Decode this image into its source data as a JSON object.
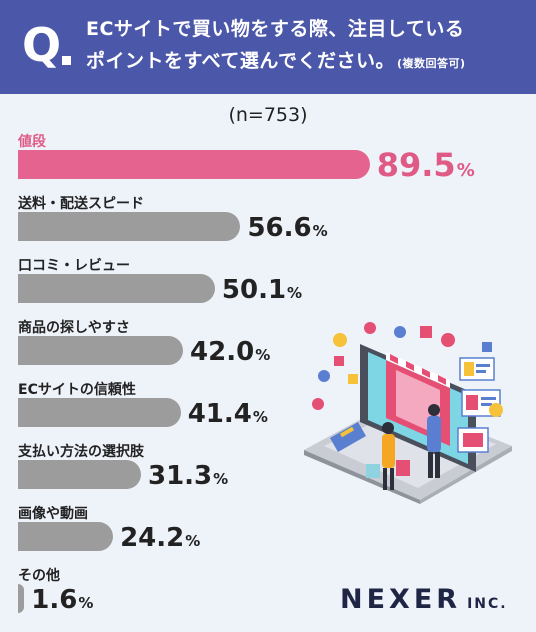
{
  "header": {
    "q_letter": "Q",
    "line1": "ECサイトで買い物をする際、注目している",
    "line2": "ポイントをすべて選んでください。",
    "note": "(複数回答可)"
  },
  "sample_size": "(n=753)",
  "colors": {
    "header_bg": "#4b57a8",
    "highlight": "#e4648f",
    "bar": "#9c9c9c",
    "background": "#eef2f9"
  },
  "chart_data": {
    "type": "bar",
    "orientation": "horizontal",
    "title": "ECサイトで買い物をする際、注目しているポイントをすべて選んでください。(複数回答可)",
    "subtitle": "(n=753)",
    "categories": [
      "値段",
      "送料・配送スピード",
      "口コミ・レビュー",
      "商品の探しやすさ",
      "ECサイトの信頼性",
      "支払い方法の選択肢",
      "画像や動画",
      "その他"
    ],
    "values": [
      89.5,
      56.6,
      50.1,
      42.0,
      41.4,
      31.3,
      24.2,
      1.6
    ],
    "value_labels": [
      "89.5",
      "56.6",
      "50.1",
      "42.0",
      "41.4",
      "31.3",
      "24.2",
      "1.6"
    ],
    "unit": "%",
    "highlight_index": 0,
    "xlim": [
      0,
      100
    ],
    "grid": false
  },
  "logo": {
    "main": "NEXER",
    "suffix": "INC."
  },
  "illustration_icon": "online-shopping-laptop-illustration"
}
